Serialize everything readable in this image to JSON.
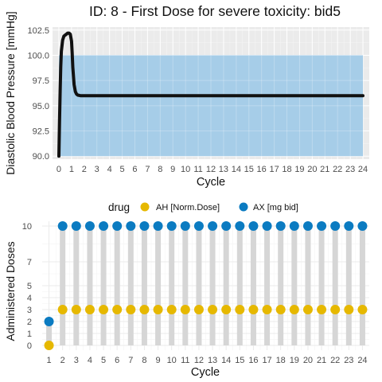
{
  "chart_data": [
    {
      "type": "line",
      "title": "ID: 8 -  First Dose for severe toxicity: bid5",
      "xlabel": "Cycle",
      "ylabel": "Diastolic Blood Pressure [mmHg]",
      "xlim": [
        -0.5,
        24.5
      ],
      "ylim": [
        89.7,
        102.8
      ],
      "x_ticks": [
        0,
        1,
        2,
        3,
        4,
        5,
        6,
        7,
        8,
        9,
        10,
        11,
        12,
        13,
        14,
        15,
        16,
        17,
        18,
        19,
        20,
        21,
        22,
        23,
        24
      ],
      "y_ticks": [
        90.0,
        92.5,
        95.0,
        97.5,
        100.0,
        102.5
      ],
      "y_tick_labels": [
        "90.0",
        "92.5",
        "95.0",
        "97.5",
        "100.0",
        "102.5"
      ],
      "grid": true,
      "band": {
        "x": [
          0,
          24
        ],
        "y": [
          90,
          100
        ],
        "color": "#a6cde8"
      },
      "series": [
        {
          "color": "#111111",
          "x": [
            0,
            0.05,
            0.1,
            0.15,
            0.2,
            0.3,
            0.4,
            0.5,
            0.6,
            0.7,
            0.8,
            0.9,
            1.0,
            1.05,
            1.1,
            1.2,
            1.3,
            1.4,
            1.5,
            1.7,
            2.0,
            3,
            4,
            6,
            8,
            10,
            12,
            14,
            16,
            18,
            20,
            22,
            24
          ],
          "y": [
            90.0,
            93.5,
            96.5,
            98.8,
            100.4,
            101.5,
            101.9,
            102.0,
            102.1,
            102.2,
            102.2,
            102.1,
            101.4,
            100.2,
            98.8,
            97.1,
            96.4,
            96.15,
            96.05,
            96.0,
            96.0,
            96.0,
            96.0,
            96.0,
            96.0,
            96.0,
            96.0,
            96.0,
            96.0,
            96.0,
            96.0,
            96.0,
            96.0
          ]
        }
      ]
    },
    {
      "type": "scatter",
      "xlabel": "Cycle",
      "ylabel": "Administered Doses",
      "legend_title": "drug",
      "legend_position": "top",
      "xlim": [
        0.5,
        24.5
      ],
      "ylim": [
        -0.4,
        10.4
      ],
      "x_ticks": [
        1,
        2,
        3,
        4,
        5,
        6,
        7,
        8,
        9,
        10,
        11,
        12,
        13,
        14,
        15,
        16,
        17,
        18,
        19,
        20,
        21,
        22,
        23,
        24
      ],
      "y_ticks": [
        0,
        1,
        2,
        3,
        4,
        5,
        7,
        10
      ],
      "grid": true,
      "series": [
        {
          "name": "AH [Norm.Dose]",
          "color": "#e6b800",
          "x": [
            1,
            2,
            3,
            4,
            5,
            6,
            7,
            8,
            9,
            10,
            11,
            12,
            13,
            14,
            15,
            16,
            17,
            18,
            19,
            20,
            21,
            22,
            23,
            24
          ],
          "y": [
            0,
            3,
            3,
            3,
            3,
            3,
            3,
            3,
            3,
            3,
            3,
            3,
            3,
            3,
            3,
            3,
            3,
            3,
            3,
            3,
            3,
            3,
            3,
            3
          ]
        },
        {
          "name": "AX [mg bid]",
          "color": "#0b7bc1",
          "x": [
            1,
            2,
            3,
            4,
            5,
            6,
            7,
            8,
            9,
            10,
            11,
            12,
            13,
            14,
            15,
            16,
            17,
            18,
            19,
            20,
            21,
            22,
            23,
            24
          ],
          "y": [
            2,
            10,
            10,
            10,
            10,
            10,
            10,
            10,
            10,
            10,
            10,
            10,
            10,
            10,
            10,
            10,
            10,
            10,
            10,
            10,
            10,
            10,
            10,
            10
          ]
        }
      ]
    }
  ]
}
